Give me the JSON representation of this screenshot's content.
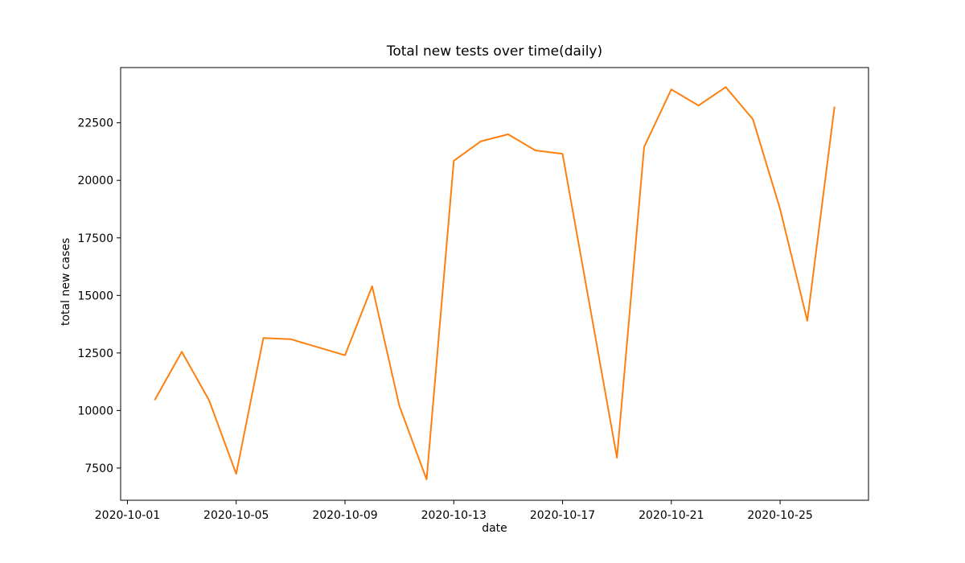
{
  "figure": {
    "background": "#ffffff"
  },
  "chart_data": {
    "type": "line",
    "title": "Total new tests over time(daily)",
    "xlabel": "date",
    "ylabel": "total new cases",
    "line_color": "#ff7f0e",
    "grid": false,
    "legend": "none",
    "x": [
      "2020-10-02",
      "2020-10-03",
      "2020-10-04",
      "2020-10-05",
      "2020-10-06",
      "2020-10-07",
      "2020-10-08",
      "2020-10-09",
      "2020-10-10",
      "2020-10-11",
      "2020-10-12",
      "2020-10-13",
      "2020-10-14",
      "2020-10-15",
      "2020-10-16",
      "2020-10-17",
      "2020-10-18",
      "2020-10-19",
      "2020-10-20",
      "2020-10-21",
      "2020-10-22",
      "2020-10-23",
      "2020-10-24",
      "2020-10-25",
      "2020-10-26",
      "2020-10-27"
    ],
    "values": [
      10450,
      12550,
      10450,
      7250,
      13150,
      13100,
      12750,
      12400,
      15400,
      10200,
      7000,
      20850,
      21700,
      22000,
      21300,
      21150,
      14550,
      7950,
      21450,
      23950,
      23250,
      24050,
      22650,
      18750,
      13900,
      23200
    ],
    "x_tick_labels": [
      "2020-10-01",
      "2020-10-05",
      "2020-10-09",
      "2020-10-13",
      "2020-10-17",
      "2020-10-21",
      "2020-10-25"
    ],
    "y_ticks": [
      7500,
      10000,
      12500,
      15000,
      17500,
      20000,
      22500
    ],
    "xlim_days": [
      0.75,
      28.25
    ],
    "ylim": [
      6100,
      24900
    ]
  }
}
